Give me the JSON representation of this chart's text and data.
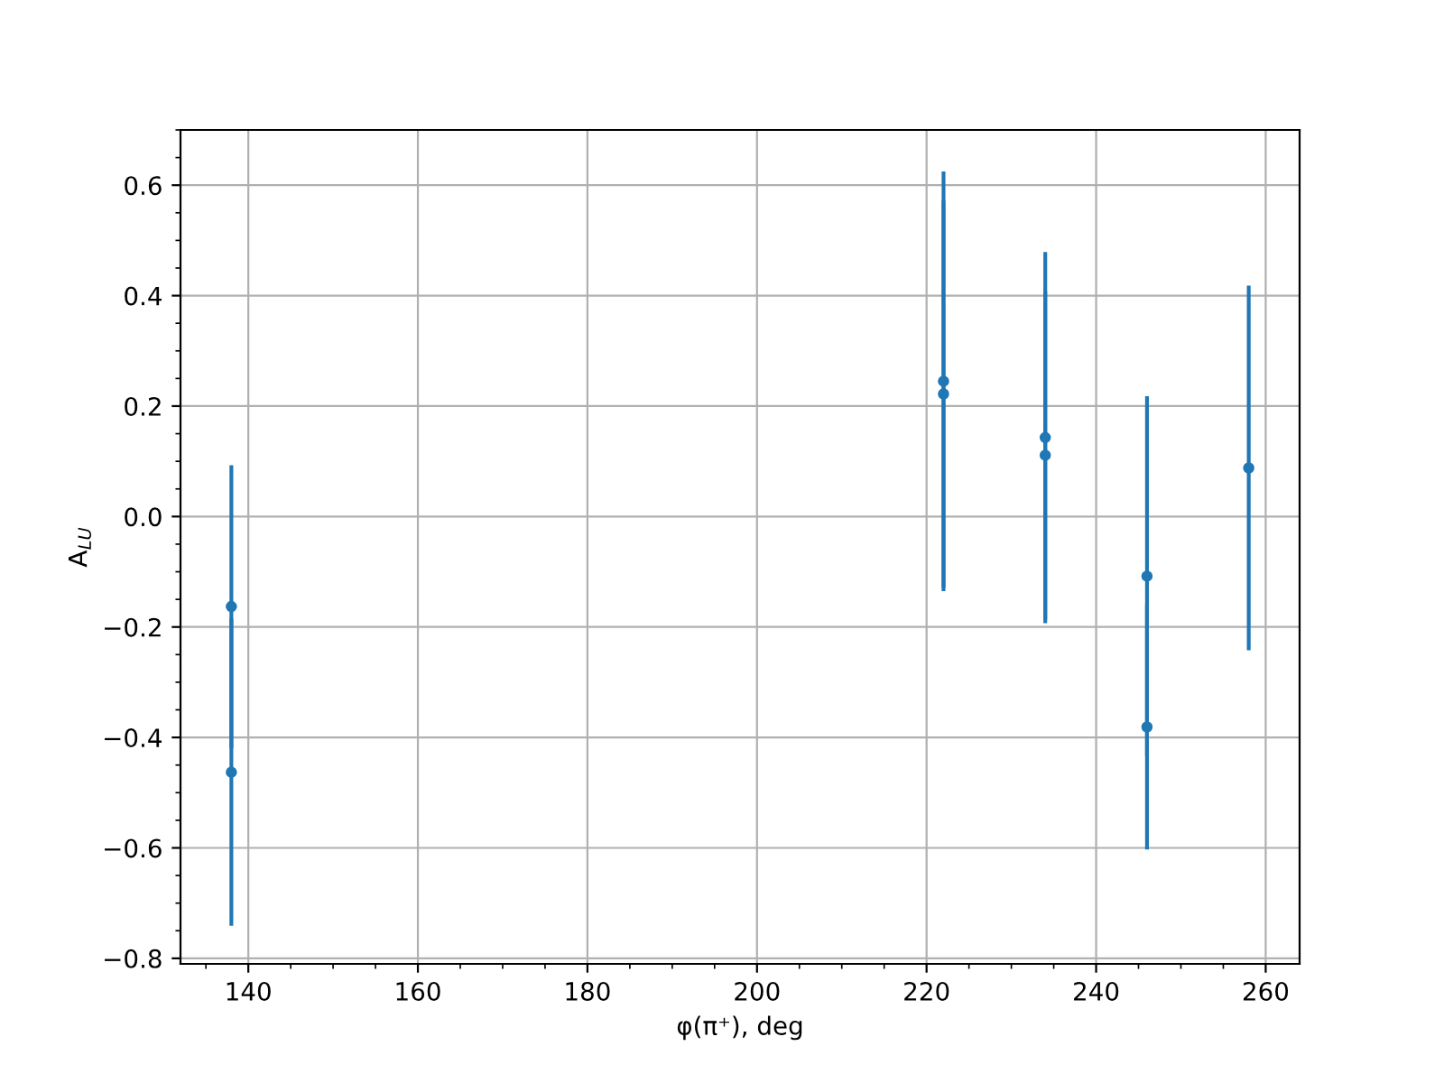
{
  "chart_data": {
    "type": "scatter",
    "xlabel": "φ(π⁺), deg",
    "ylabel": "A$_{LU}$",
    "x": [
      138,
      138,
      222,
      222,
      234,
      234,
      246,
      246,
      258
    ],
    "values": [
      -0.163,
      -0.463,
      0.245,
      0.222,
      0.143,
      0.111,
      -0.108,
      -0.381,
      0.088
    ],
    "errors": [
      0.256,
      0.278,
      0.38,
      0.35,
      0.336,
      0.297,
      0.326,
      0.222,
      0.33
    ],
    "color": "#1f77b4",
    "marker": "circle",
    "grid": true,
    "xlim": [
      132,
      264
    ],
    "xticks": [
      140,
      160,
      180,
      200,
      220,
      240,
      260
    ],
    "ylim": [
      -0.81,
      0.7
    ],
    "yticks": [
      {
        "value": -0.8,
        "label": "−0.8"
      },
      {
        "value": -0.6,
        "label": "−0.6"
      },
      {
        "value": -0.4,
        "label": "−0.4"
      },
      {
        "value": -0.2,
        "label": "−0.2"
      },
      {
        "value": 0.0,
        "label": "0.0"
      },
      {
        "value": 0.2,
        "label": "0.2"
      },
      {
        "value": 0.4,
        "label": "0.4"
      },
      {
        "value": 0.6,
        "label": "0.6"
      }
    ]
  }
}
